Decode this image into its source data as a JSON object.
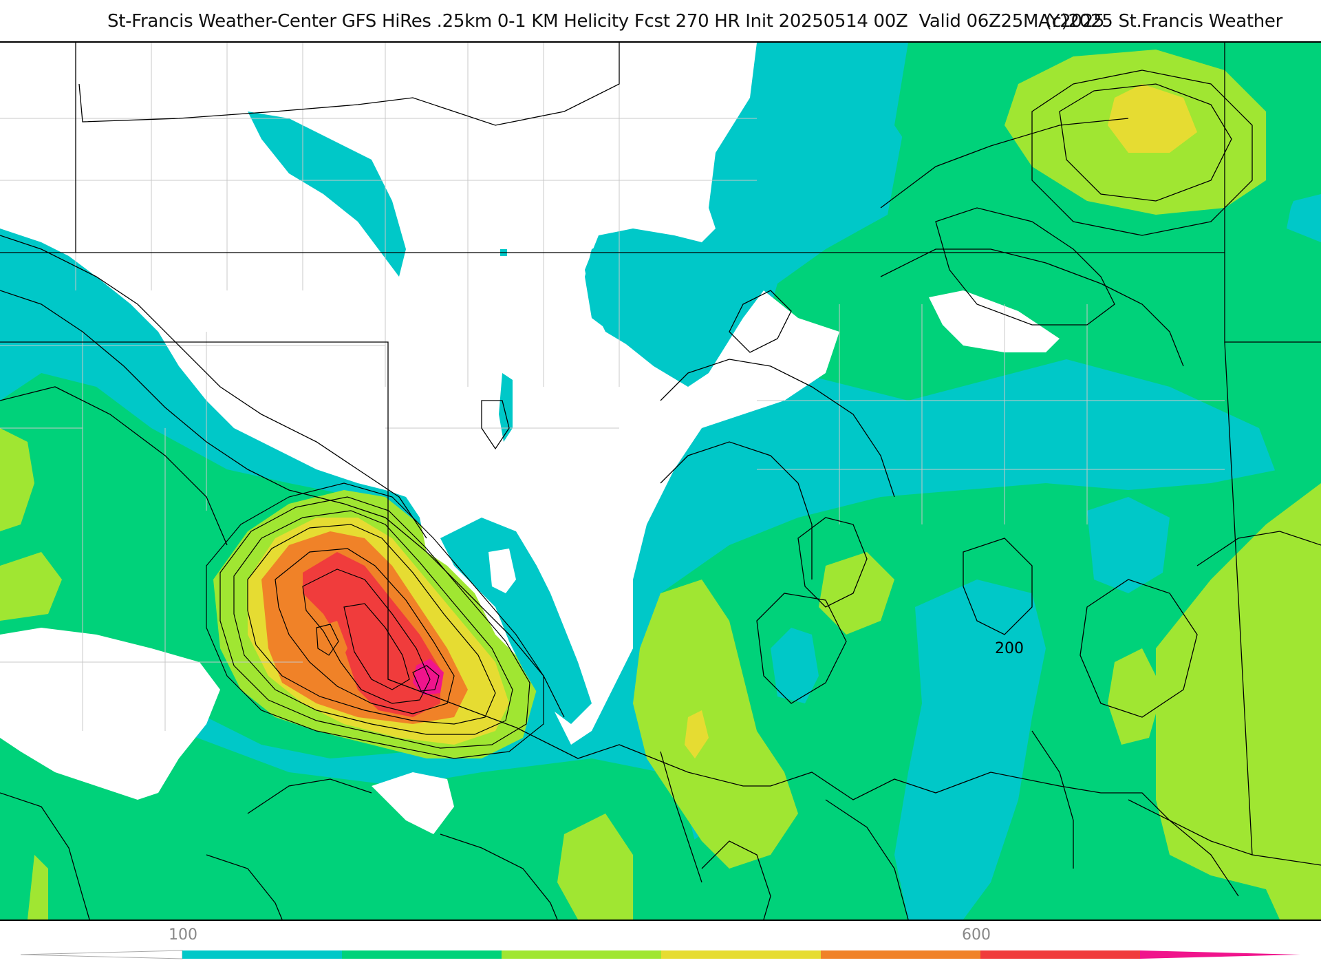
{
  "header": {
    "title": "St-Francis Weather-Center GFS HiRes .25km 0-1 KM Helicity Fcst 270 HR Init 20250514 00Z  Valid 06Z25MAY2025",
    "copyright": "(c)2025 St.Francis Weather"
  },
  "map": {
    "contour_label": "200",
    "colors": {
      "white": "#ffffff",
      "cyan": "#00c8c8",
      "green": "#00d27a",
      "lime": "#a0e632",
      "yellow": "#e6dc32",
      "orange": "#f08228",
      "red": "#f03c3c",
      "magenta": "#f0148c"
    }
  },
  "colorbar": {
    "labels": [
      "100",
      "600"
    ],
    "segment_colors": [
      "#00c8c8",
      "#00d27a",
      "#00d27a",
      "#a0e632",
      "#e6dc32",
      "#f08228",
      "#f03c3c"
    ],
    "left_triangle_color": "#ffffff",
    "right_triangle_color": "#f0148c"
  }
}
